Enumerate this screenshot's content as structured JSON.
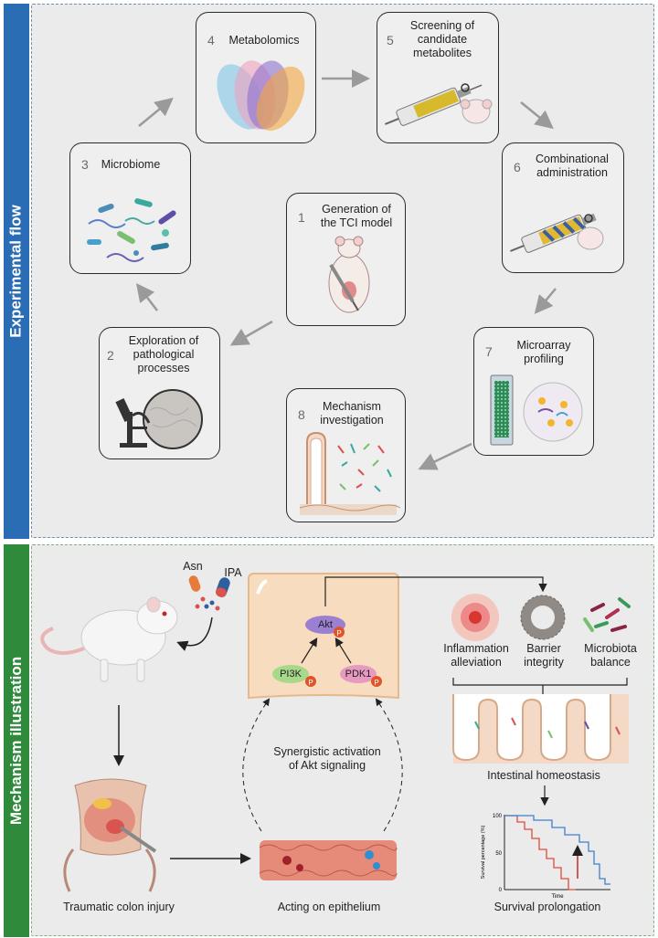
{
  "sections": {
    "top_label": "Experimental flow",
    "bottom_label": "Mechanism illustration"
  },
  "steps": [
    {
      "num": "1",
      "line1": "Generation of",
      "line2": "the TCI model"
    },
    {
      "num": "2",
      "line1": "Exploration of",
      "line2": "pathological",
      "line3": "processes"
    },
    {
      "num": "3",
      "line1": "Microbiome"
    },
    {
      "num": "4",
      "line1": "Metabolomics"
    },
    {
      "num": "5",
      "line1": "Screening of",
      "line2": "candidate",
      "line3": "metabolites"
    },
    {
      "num": "6",
      "line1": "Combinational",
      "line2": "administration"
    },
    {
      "num": "7",
      "line1": "Microarray",
      "line2": "profiling"
    },
    {
      "num": "8",
      "line1": "Mechanism",
      "line2": "investigation"
    }
  ],
  "mechanism": {
    "asn": "Asn",
    "ipa": "IPA",
    "akt": "Akt",
    "pi3k": "PI3K",
    "pdk1": "PDK1",
    "phospho": "P",
    "synergy_line1": "Synergistic activation",
    "synergy_line2": "of Akt signaling",
    "inflammation_line1": "Inflammation",
    "inflammation_line2": "alleviation",
    "barrier_line1": "Barrier",
    "barrier_line2": "integrity",
    "microbiota_line1": "Microbiota",
    "microbiota_line2": "balance",
    "intestinal_homeostasis": "Intestinal homeostasis",
    "traumatic_colon_injury": "Traumatic colon injury",
    "acting_on_epithelium": "Acting on epithelium",
    "survival_prolongation": "Survival prolongation"
  },
  "survival_chart": {
    "y_label": "Survival percentage (%)",
    "x_label": "Time",
    "y_ticks": [
      "100",
      "50",
      "0"
    ]
  },
  "colors": {
    "top_bar": "#2a6db5",
    "bottom_bar": "#2f8a3c",
    "phospho": "#e0542c",
    "akt": "#9b7fd1",
    "pi3k": "#a8d98a",
    "pdk1": "#e79ac0"
  }
}
